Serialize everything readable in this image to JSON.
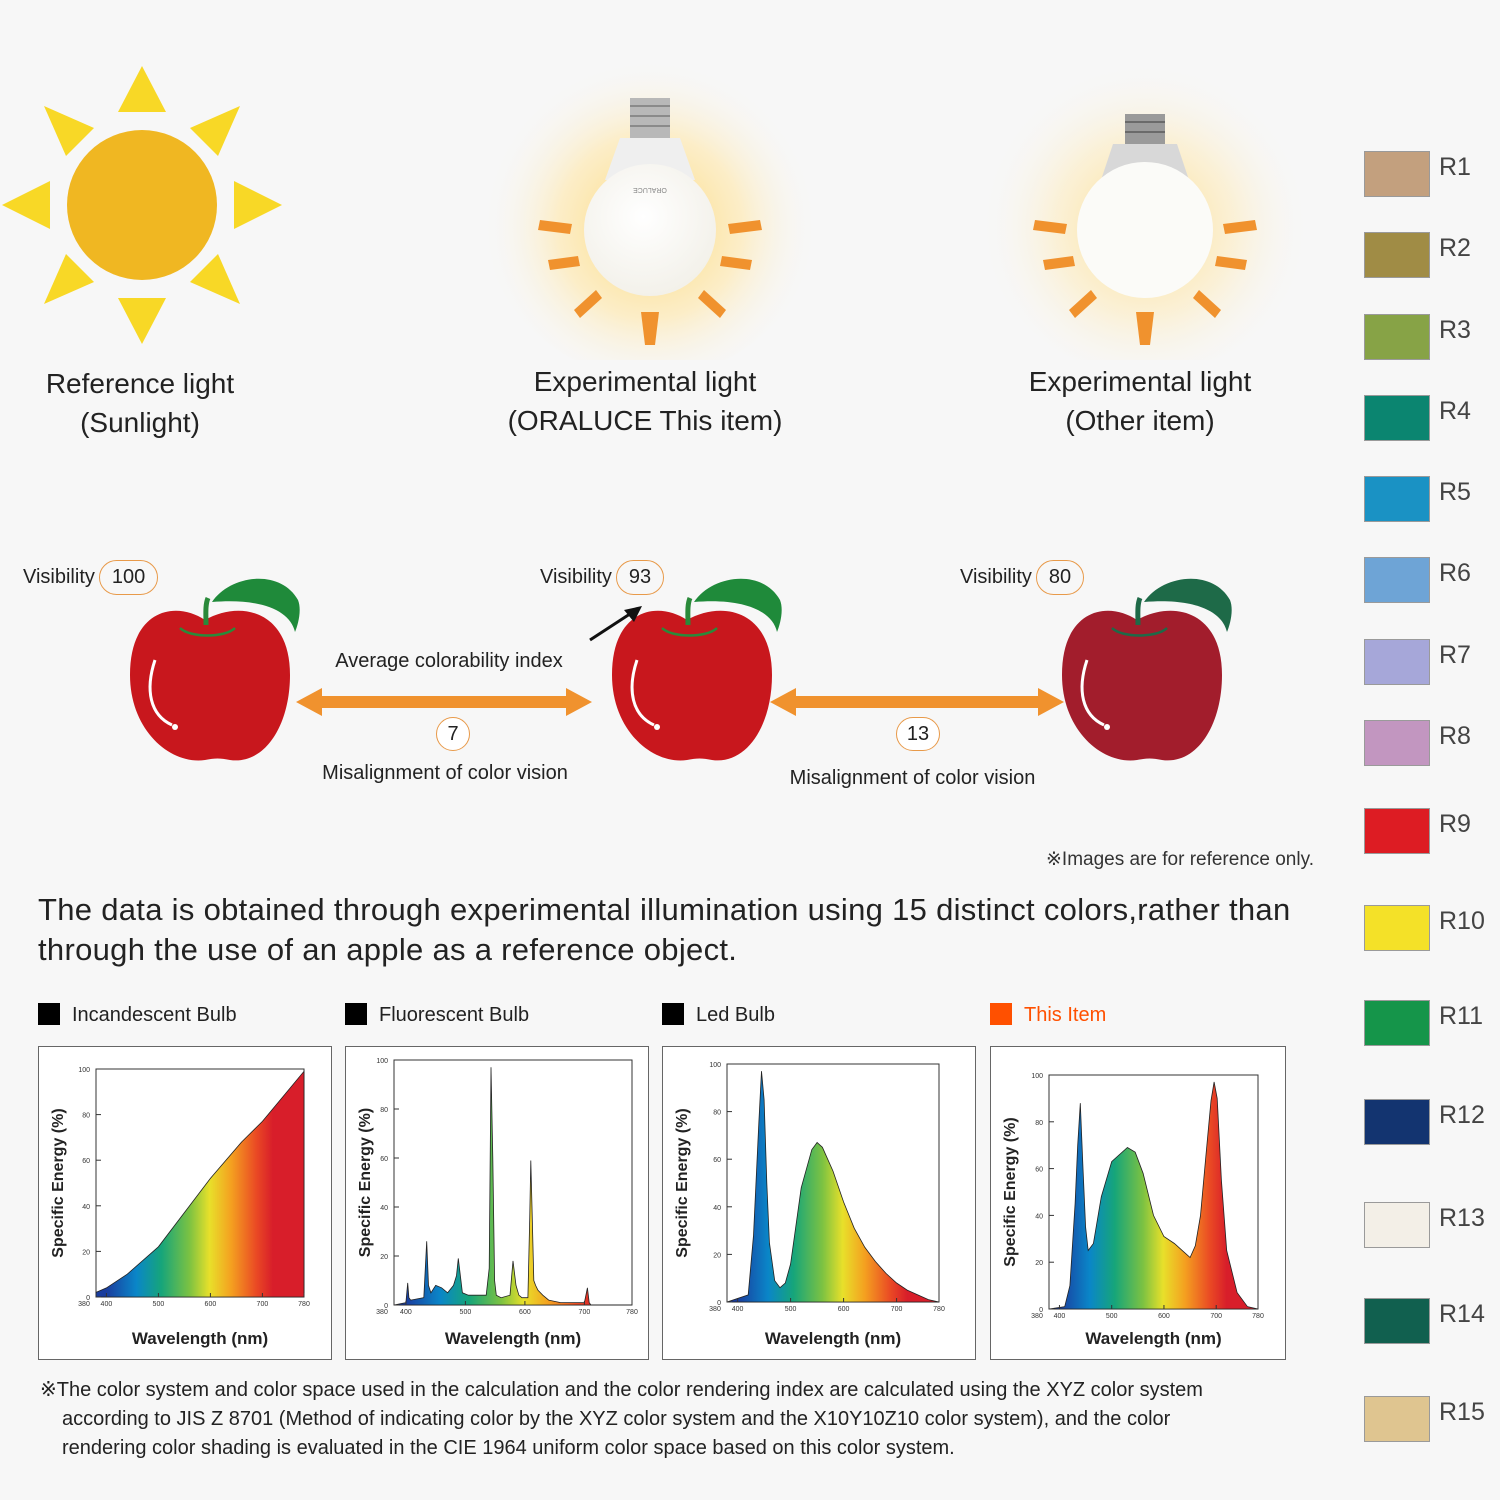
{
  "lights": [
    {
      "title": "Reference light",
      "subtitle": "(Sunlight)"
    },
    {
      "title": "Experimental light",
      "subtitle": "(ORALUCE This item)"
    },
    {
      "title": "Experimental light",
      "subtitle": "(Other item)"
    }
  ],
  "bulb_brand": "ORALUCE",
  "apples": [
    {
      "visibility_label": "Visibility",
      "visibility": "100"
    },
    {
      "visibility_label": "Visibility",
      "visibility": "93"
    },
    {
      "visibility_label": "Visibility",
      "visibility": "80"
    }
  ],
  "comparison": {
    "avg_label": "Average colorability index",
    "left": {
      "value": "7",
      "label": "Misalignment of color vision"
    },
    "right": {
      "value": "13",
      "label": "Misalignment of color vision"
    }
  },
  "note_reference": "※Images are for reference only.",
  "headline": "The data is obtained through experimental illumination using 15 distinct colors,rather than through the use of an apple as a reference object.",
  "colors": {
    "orange": "#f0922e",
    "this_item": "#ff5000",
    "black": "#000000"
  },
  "chart_data": [
    {
      "type": "area",
      "name": "Incandescent Bulb",
      "legend_color": "#000000",
      "xlabel": "Wavelength (nm)",
      "ylabel": "Specific Energy (%)",
      "xlim": [
        380,
        780
      ],
      "ylim": [
        0,
        100
      ],
      "x_ticks": [
        "380",
        "400",
        "500",
        "600",
        "700",
        "780"
      ],
      "y_ticks": [
        "0",
        "20",
        "40",
        "60",
        "80",
        "100"
      ],
      "x": [
        380,
        400,
        440,
        500,
        560,
        600,
        660,
        700,
        740,
        780
      ],
      "y": [
        2,
        4,
        10,
        22,
        40,
        52,
        68,
        77,
        88,
        99
      ]
    },
    {
      "type": "area",
      "name": "Fluorescent Bulb",
      "legend_color": "#000000",
      "xlabel": "Wavelength (nm)",
      "ylabel": "Specific Energy (%)",
      "xlim": [
        380,
        780
      ],
      "ylim": [
        0,
        100
      ],
      "x_ticks": [
        "380",
        "400",
        "500",
        "600",
        "700",
        "780"
      ],
      "y_ticks": [
        "0",
        "20",
        "40",
        "60",
        "80",
        "100"
      ],
      "x": [
        380,
        400,
        403,
        405,
        408,
        430,
        435,
        438,
        442,
        450,
        460,
        470,
        480,
        485,
        488,
        495,
        505,
        535,
        540,
        543,
        546,
        549,
        552,
        560,
        575,
        580,
        585,
        590,
        595,
        605,
        608,
        610,
        612,
        615,
        618,
        622,
        630,
        640,
        660,
        700,
        705,
        708,
        711,
        716,
        740,
        780
      ],
      "y": [
        0,
        1,
        9,
        3,
        2,
        3,
        26,
        8,
        5,
        8,
        7,
        5,
        8,
        12,
        19,
        5,
        4,
        4,
        15,
        97,
        60,
        10,
        4,
        3,
        4,
        18,
        8,
        4,
        3,
        3,
        35,
        59,
        40,
        10,
        8,
        6,
        4,
        2,
        1,
        1,
        7,
        1,
        0,
        0,
        0,
        0
      ]
    },
    {
      "type": "area",
      "name": "Led Bulb",
      "legend_color": "#000000",
      "xlabel": "Wavelength (nm)",
      "ylabel": "Specific Energy (%)",
      "xlim": [
        380,
        780
      ],
      "ylim": [
        0,
        100
      ],
      "x_ticks": [
        "380",
        "400",
        "500",
        "600",
        "700",
        "780"
      ],
      "y_ticks": [
        "0",
        "20",
        "40",
        "60",
        "80",
        "100"
      ],
      "x": [
        380,
        420,
        430,
        440,
        445,
        450,
        455,
        460,
        470,
        480,
        490,
        500,
        520,
        540,
        550,
        560,
        580,
        600,
        620,
        640,
        660,
        680,
        700,
        720,
        740,
        760,
        780
      ],
      "y": [
        0,
        3,
        28,
        75,
        97,
        85,
        50,
        25,
        9,
        6,
        8,
        16,
        48,
        64,
        67,
        65,
        55,
        42,
        31,
        23,
        17,
        12,
        8,
        5,
        3,
        1,
        0
      ]
    },
    {
      "type": "area",
      "name": "This Item",
      "legend_color": "#ff5000",
      "xlabel": "Wavelength (nm)",
      "ylabel": "Specific Energy (%)",
      "xlim": [
        380,
        780
      ],
      "ylim": [
        0,
        100
      ],
      "x_ticks": [
        "380",
        "400",
        "500",
        "600",
        "700",
        "780"
      ],
      "y_ticks": [
        "0",
        "20",
        "40",
        "60",
        "80",
        "100"
      ],
      "x": [
        380,
        410,
        420,
        430,
        435,
        440,
        445,
        450,
        455,
        465,
        480,
        500,
        530,
        545,
        560,
        580,
        600,
        620,
        640,
        650,
        660,
        670,
        680,
        690,
        696,
        702,
        710,
        720,
        740,
        760,
        780
      ],
      "y": [
        0,
        1,
        10,
        45,
        70,
        88,
        60,
        35,
        25,
        28,
        48,
        63,
        69,
        67,
        58,
        40,
        31,
        28,
        24,
        22,
        27,
        40,
        65,
        89,
        97,
        90,
        55,
        25,
        7,
        1,
        0
      ]
    }
  ],
  "footnote": {
    "line1": "※The color system and color space used in the calculation and the color rendering index are calculated using the XYZ color system",
    "line2": "according to JIS Z 8701 (Method of indicating color by the XYZ color system and the X10Y10Z10 color system), and the color",
    "line3": "rendering color shading is evaluated in the CIE 1964 uniform color space based on this color system."
  },
  "test_colors": [
    {
      "label": "R1",
      "color": "#c3a07e"
    },
    {
      "label": "R2",
      "color": "#a08c45"
    },
    {
      "label": "R3",
      "color": "#87a346"
    },
    {
      "label": "R4",
      "color": "#0b8570"
    },
    {
      "label": "R5",
      "color": "#1a92c4"
    },
    {
      "label": "R6",
      "color": "#6ea4d6"
    },
    {
      "label": "R7",
      "color": "#a6a7d9"
    },
    {
      "label": "R8",
      "color": "#c296c0"
    },
    {
      "label": "R9",
      "color": "#dd1c23"
    },
    {
      "label": "R10",
      "color": "#f4e128"
    },
    {
      "label": "R11",
      "color": "#15954a"
    },
    {
      "label": "R12",
      "color": "#133470"
    },
    {
      "label": "R13",
      "color": "#f3efe7"
    },
    {
      "label": "R14",
      "color": "#11604f"
    },
    {
      "label": "R15",
      "color": "#dfc590"
    }
  ]
}
